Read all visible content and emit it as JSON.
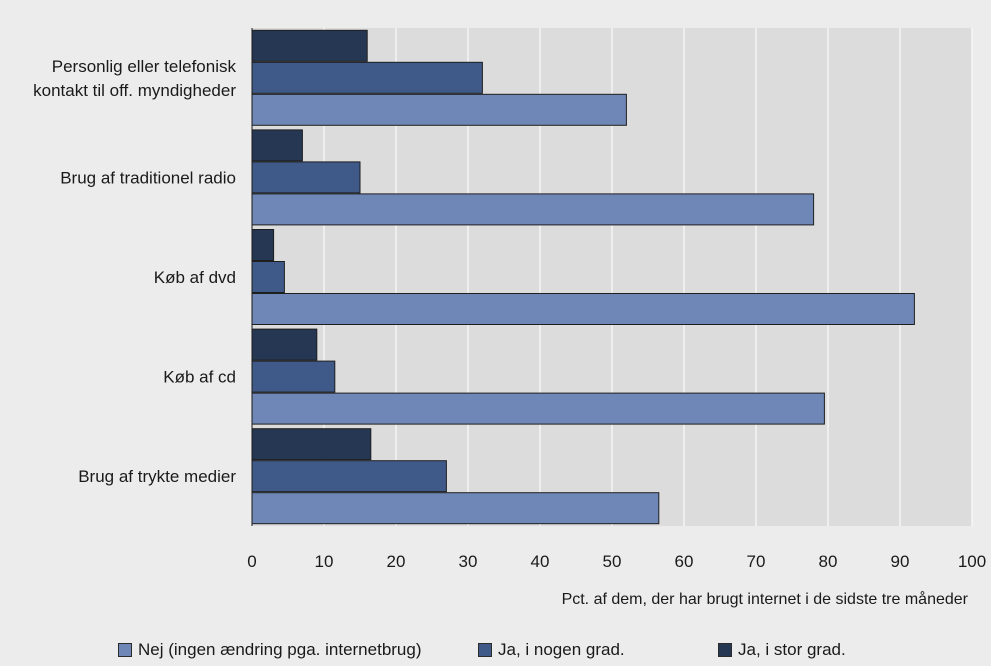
{
  "chart_data": {
    "type": "bar",
    "orientation": "horizontal",
    "categories": [
      [
        "Personlig eller telefonisk",
        "kontakt til off. myndigheder"
      ],
      [
        "Brug af traditionel radio"
      ],
      [
        "Køb af dvd"
      ],
      [
        "Køb af cd"
      ],
      [
        "Brug af trykte medier"
      ]
    ],
    "series": [
      {
        "name": "Ja, i stor grad.",
        "color": "#263753",
        "values": [
          16,
          7,
          3,
          9,
          16.5
        ]
      },
      {
        "name": "Ja, i nogen grad.",
        "color": "#3f5a88",
        "values": [
          32,
          15,
          4.5,
          11.5,
          27
        ]
      },
      {
        "name": "Nej (ingen ændring pga. internetbrug)",
        "color": "#6e87b6",
        "values": [
          52,
          78,
          92,
          79.5,
          56.5
        ]
      }
    ],
    "legend_order": [
      2,
      1,
      0
    ],
    "xlabel": "Pct. af dem, der har brugt internet i de sidste tre måneder",
    "xlim": [
      0,
      100
    ],
    "xticks": [
      0,
      10,
      20,
      30,
      40,
      50,
      60,
      70,
      80,
      90,
      100
    ],
    "grid": true,
    "legend_position": "bottom",
    "plot_background": "#dcdcdc"
  }
}
